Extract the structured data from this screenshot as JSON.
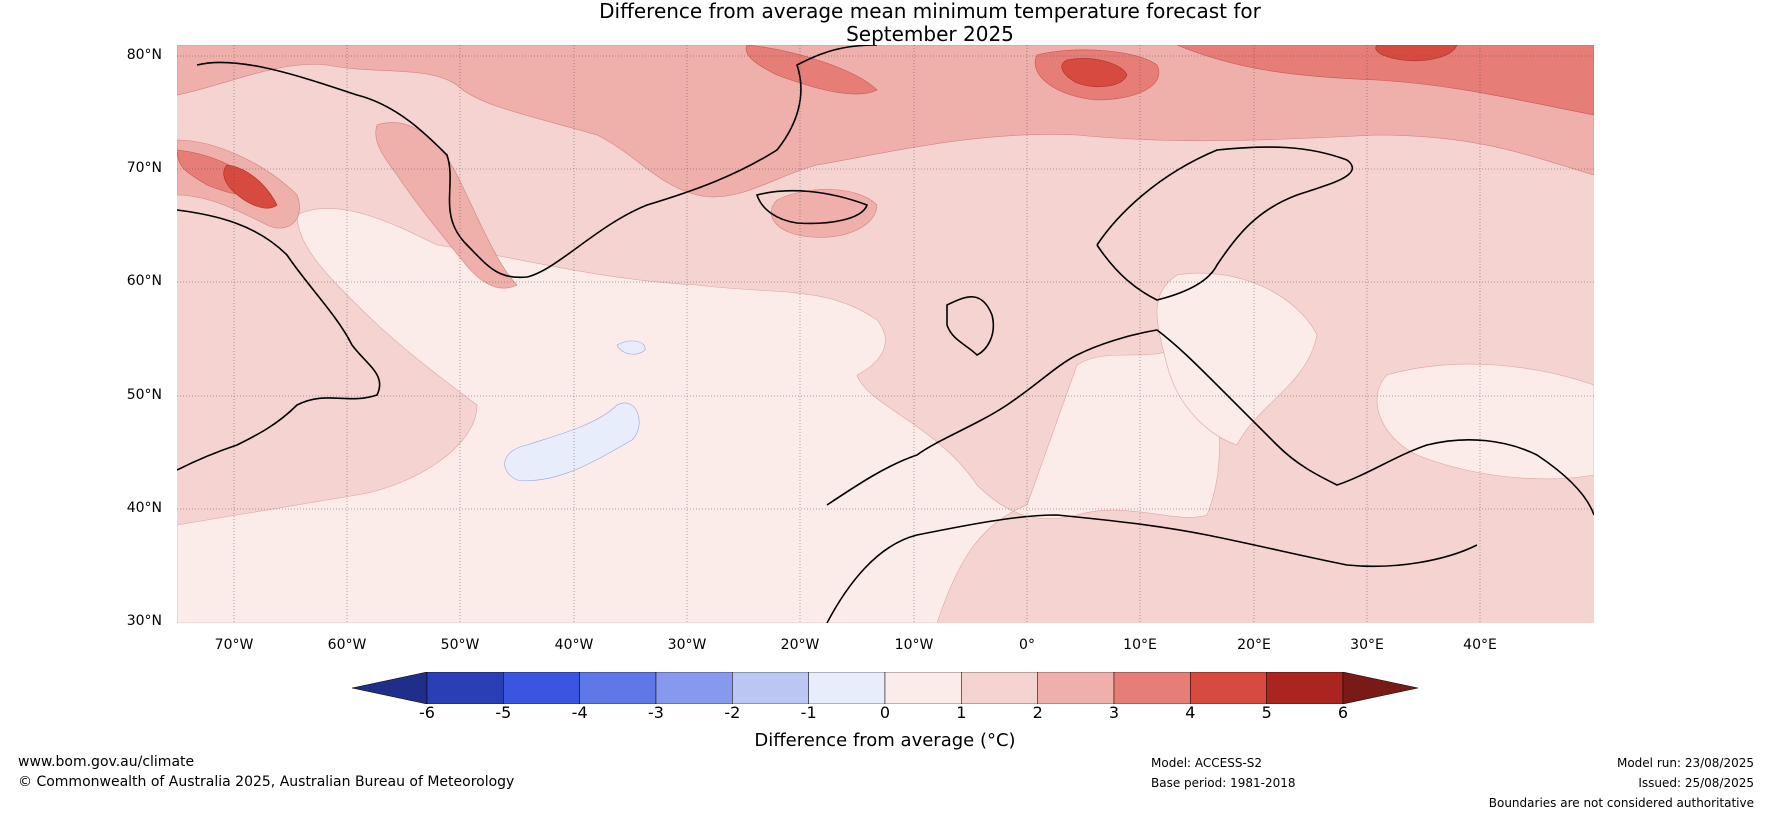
{
  "title_line1": "Difference from average mean minimum temperature forecast for",
  "title_line2": "September 2025",
  "lat_ticks": [
    "80°N",
    "70°N",
    "60°N",
    "50°N",
    "40°N",
    "30°N"
  ],
  "lon_ticks": [
    "70°W",
    "60°W",
    "50°W",
    "40°W",
    "30°W",
    "20°W",
    "10°W",
    "0°",
    "10°E",
    "20°E",
    "30°E",
    "40°E"
  ],
  "map_extent": {
    "lon": [
      -75,
      50
    ],
    "lat": [
      30,
      81
    ]
  },
  "colorbar": {
    "ticks": [
      "-6",
      "-5",
      "-4",
      "-3",
      "-2",
      "-1",
      "0",
      "1",
      "2",
      "3",
      "4",
      "5",
      "6"
    ],
    "colors": [
      "#1f2e8a",
      "#2a3eb5",
      "#3a55e0",
      "#5f78e8",
      "#8799ec",
      "#bcc6f3",
      "#e8edfb",
      "#fbecea",
      "#f5d3d1",
      "#efafab",
      "#e67d76",
      "#d64a40",
      "#ab2520",
      "#7a1a17"
    ],
    "label": "Difference from average (°C)"
  },
  "footer": {
    "url": "www.bom.gov.au/climate",
    "copyright": "© Commonwealth of Australia 2025, Australian Bureau of Meteorology",
    "model": "Model: ACCESS-S2",
    "base_period": "Base period: 1981-2018",
    "model_run": "Model run: 23/08/2025",
    "issued": "Issued: 25/08/2025",
    "disclaimer": "Boundaries are not considered authoritative"
  }
}
